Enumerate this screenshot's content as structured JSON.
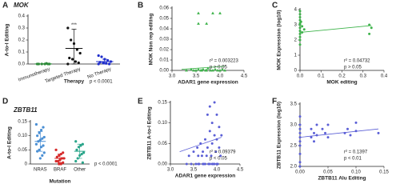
{
  "chart_data": [
    {
      "type": "strip",
      "panel": "A",
      "title": "MOK",
      "y_label": "A-to-I Editing",
      "x_label": "Therapy",
      "categories": [
        "Immunotherapy",
        "Targeted Therapy",
        "No Therapy"
      ],
      "colors": [
        "#2e8b3a",
        "#111111",
        "#1f2ecc"
      ],
      "values": [
        [
          0,
          0,
          0,
          0,
          0,
          0,
          0.005
        ],
        [
          0,
          0.01,
          0.02,
          0.04,
          0.05,
          0.09,
          0.12,
          0.17,
          0.2,
          0.3
        ],
        [
          0,
          0,
          0.005,
          0.01,
          0.015,
          0.02,
          0.03,
          0.04,
          0.06,
          0.07
        ]
      ],
      "means": [
        0.001,
        0.13,
        0.02
      ],
      "errors": [
        0.002,
        0.16,
        0.02
      ],
      "ylim": [
        0,
        0.4
      ],
      "yticks": [
        {
          "value": 0,
          "label": "0.0"
        },
        0.1,
        0.2,
        0.3,
        0.4
      ],
      "annotations": [
        "***",
        "p < 0.0001"
      ]
    },
    {
      "type": "scatter",
      "panel": "B",
      "y_label": "MOK Non rep editing",
      "x_label": "ADAR1 gene expression",
      "color": "#3db34a",
      "marker": "triangle",
      "x": [
        3.3,
        3.4,
        3.45,
        3.5,
        3.55,
        3.6,
        3.62,
        3.65,
        3.7,
        3.72,
        3.75,
        3.8,
        3.85,
        3.9,
        3.95,
        4.0,
        4.05,
        4.1,
        3.55,
        3.72,
        3.55,
        3.85,
        4.0
      ],
      "values": [
        0,
        0.001,
        0,
        0,
        0.001,
        0,
        0,
        0.001,
        0,
        0,
        0.002,
        0,
        0,
        0.001,
        0,
        0,
        0.001,
        0,
        0.045,
        0.045,
        0.055,
        0.055,
        0.055
      ],
      "trendline": {
        "x": [
          3.2,
          4.1
        ],
        "values": [
          0.001,
          0.004
        ]
      },
      "xlim": [
        3.0,
        4.5
      ],
      "xticks": [
        {
          "value": 3,
          "label": "3.0"
        },
        3.5,
        {
          "value": 4,
          "label": "4.0"
        },
        4.5
      ],
      "ylim": [
        0,
        0.06
      ],
      "yticks": [
        {
          "value": 0,
          "label": "0.00"
        },
        0.01,
        0.02,
        0.03,
        0.04,
        0.05,
        0.06
      ],
      "annotations": [
        "r² = 0.003223",
        "p > 0.05"
      ]
    },
    {
      "type": "scatter",
      "panel": "C",
      "y_label": "MOK Expression (log10)",
      "x_label": "MOK editing",
      "color": "#3db34a",
      "marker": "circle",
      "x": [
        0,
        0,
        0,
        0,
        0,
        0,
        0,
        0,
        0,
        0,
        0,
        0,
        0.005,
        0.01,
        0.01,
        0.02,
        0.33,
        0.33,
        0.34
      ],
      "values": [
        3.9,
        3.7,
        3.5,
        3.3,
        3.1,
        3.0,
        2.8,
        2.6,
        2.4,
        2.2,
        2.0,
        1.7,
        3.2,
        2.9,
        2.5,
        2.7,
        3.0,
        2.4,
        2.8
      ],
      "trendline": {
        "x": [
          0,
          0.34
        ],
        "values": [
          2.5,
          2.95
        ]
      },
      "xlim": [
        0,
        0.4
      ],
      "xticks": [
        {
          "value": 0,
          "label": "0.0"
        },
        0.1,
        0.2,
        0.3,
        0.4
      ],
      "ylim": [
        0,
        4
      ],
      "yticks": [
        0,
        1,
        2,
        3,
        4
      ],
      "annotations": [
        "r² = 0.04732",
        "p > 0.05"
      ]
    },
    {
      "type": "strip",
      "panel": "D",
      "title": "ZBTB11",
      "y_label": "A-to-I Editing",
      "x_label": "Mutation",
      "categories": [
        "NRAS",
        "BRAF",
        "Other"
      ],
      "colors": [
        "#4a8fd4",
        "#d62a2a",
        "#2aa58a"
      ],
      "values": [
        [
          0.14,
          0.13,
          0.12,
          0.11,
          0.1,
          0.095,
          0.09,
          0.085,
          0.08,
          0.07,
          0.065,
          0.06,
          0.05,
          0.045,
          0.04,
          0.03,
          0.02
        ],
        [
          0.05,
          0.04,
          0.035,
          0.03,
          0.025,
          0.02,
          0.02,
          0.015,
          0.01,
          0.01,
          0.005,
          0,
          0
        ],
        [
          0.08,
          0.07,
          0.065,
          0.06,
          0.05,
          0.04,
          0.035,
          0.03,
          0.02,
          0.01,
          0.005
        ]
      ],
      "means": [
        0.08,
        0.02,
        0.045
      ],
      "errors": [
        0.035,
        0.015,
        0.025
      ],
      "ylim": [
        0,
        0.15
      ],
      "yticks": [
        0,
        0.05,
        {
          "value": 0.1,
          "label": "0.10"
        },
        0.15
      ],
      "annotations": [
        "p < 0.0001"
      ]
    },
    {
      "type": "scatter",
      "panel": "E",
      "y_label": "ZBTB11 A-to-I Editing",
      "x_label": "ADAR1 gene expression",
      "color": "#5b5fd6",
      "marker": "circle",
      "x": [
        3.35,
        3.4,
        3.45,
        3.5,
        3.55,
        3.58,
        3.6,
        3.62,
        3.65,
        3.68,
        3.7,
        3.72,
        3.75,
        3.78,
        3.8,
        3.8,
        3.82,
        3.85,
        3.85,
        3.88,
        3.9,
        3.9,
        3.92,
        3.95,
        3.95,
        3.98,
        4.0,
        4.0,
        4.02,
        4.05,
        4.05,
        4.08,
        4.1,
        3.6,
        3.7,
        3.75,
        3.85,
        3.9,
        4.0,
        3.95
      ],
      "values": [
        0,
        0.02,
        0,
        0.03,
        0,
        0.04,
        0.02,
        0,
        0.05,
        0.02,
        0.03,
        0,
        0.06,
        0.02,
        0.12,
        0.04,
        0,
        0.14,
        0.08,
        0.02,
        0.1,
        0.05,
        0,
        0.15,
        0.07,
        0.03,
        0.12,
        0.06,
        0,
        0.09,
        0.04,
        0.02,
        0.07,
        0,
        0,
        0,
        0,
        0,
        0,
        0
      ],
      "trendline": {
        "x": [
          3.2,
          4.1
        ],
        "values": [
          0.03,
          0.065
        ]
      },
      "xlim": [
        3.0,
        4.5
      ],
      "xticks": [
        {
          "value": 3,
          "label": "3.0"
        },
        3.5,
        {
          "value": 4,
          "label": "4.0"
        },
        4.5
      ],
      "ylim": [
        0,
        0.15
      ],
      "yticks": [
        {
          "value": 0,
          "label": "0.00"
        },
        0.05,
        {
          "value": 0.1,
          "label": "0.10"
        },
        0.15
      ],
      "annotations": [
        "r² = 0.09379",
        "p < 0.05"
      ]
    },
    {
      "type": "scatter",
      "panel": "F",
      "y_label": "ZBTB11 Expression (log10)",
      "x_label": "ZBTB11 Alu Editing",
      "color": "#5b5fd6",
      "marker": "circle",
      "x": [
        0,
        0,
        0,
        0,
        0,
        0,
        0,
        0,
        0,
        0,
        0.02,
        0.02,
        0.025,
        0.025,
        0.03,
        0.03,
        0.04,
        0.045,
        0.05,
        0.05,
        0.08,
        0.085,
        0.09,
        0.1,
        0.1,
        0.14
      ],
      "values": [
        3.2,
        3.0,
        2.9,
        2.8,
        2.7,
        2.6,
        2.5,
        2.3,
        2.1,
        2.0,
        2.9,
        2.7,
        2.8,
        2.6,
        3.0,
        2.75,
        2.9,
        2.8,
        2.7,
        3.0,
        2.8,
        2.9,
        2.75,
        3.05,
        2.85,
        2.8
      ],
      "trendline": {
        "x": [
          0,
          0.14
        ],
        "values": [
          2.7,
          2.9
        ]
      },
      "xlim": [
        0,
        0.15
      ],
      "xticks": [
        {
          "value": 0,
          "label": "0.00"
        },
        0.05,
        {
          "value": 0.1,
          "label": "0.10"
        },
        0.15
      ],
      "ylim": [
        2.0,
        3.5
      ],
      "yticks": [
        {
          "value": 2,
          "label": "2.0"
        },
        2.5,
        {
          "value": 3,
          "label": "3.0"
        },
        3.5
      ],
      "annotations": [
        "r² = 0.1397",
        "p < 0.01"
      ]
    }
  ]
}
